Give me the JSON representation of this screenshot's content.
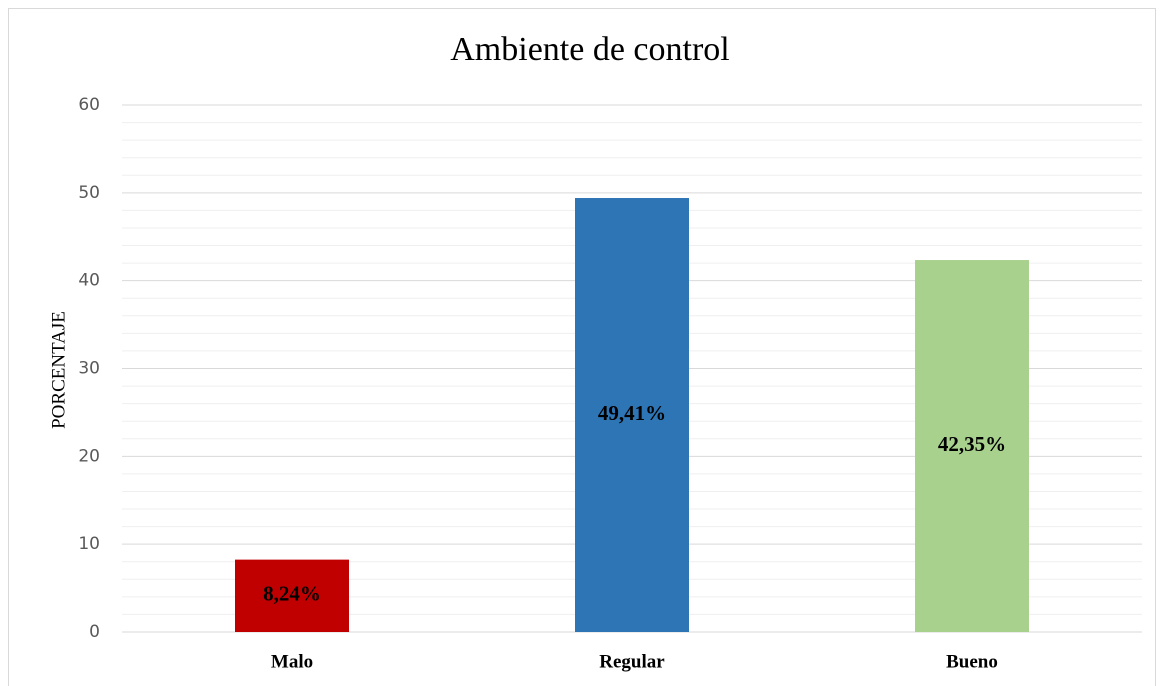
{
  "chart_data": {
    "type": "bar",
    "title": "Ambiente de control",
    "ylabel": "PORCENTAJE",
    "categories": [
      "Malo",
      "Regular",
      "Bueno"
    ],
    "values": [
      8.24,
      49.41,
      42.35
    ],
    "value_labels": [
      "8,24%",
      "49,41%",
      "42,35%"
    ],
    "colors": [
      "#c00000",
      "#2e75b6",
      "#a9d18e"
    ],
    "ylim": [
      0,
      60
    ],
    "yticks": [
      0,
      10,
      20,
      30,
      40,
      50,
      60
    ],
    "minor_yticks": [
      2,
      4,
      6,
      8,
      12,
      14,
      16,
      18,
      22,
      24,
      26,
      28,
      32,
      34,
      36,
      38,
      42,
      44,
      46,
      48,
      52,
      54,
      56,
      58
    ],
    "grid": true
  }
}
